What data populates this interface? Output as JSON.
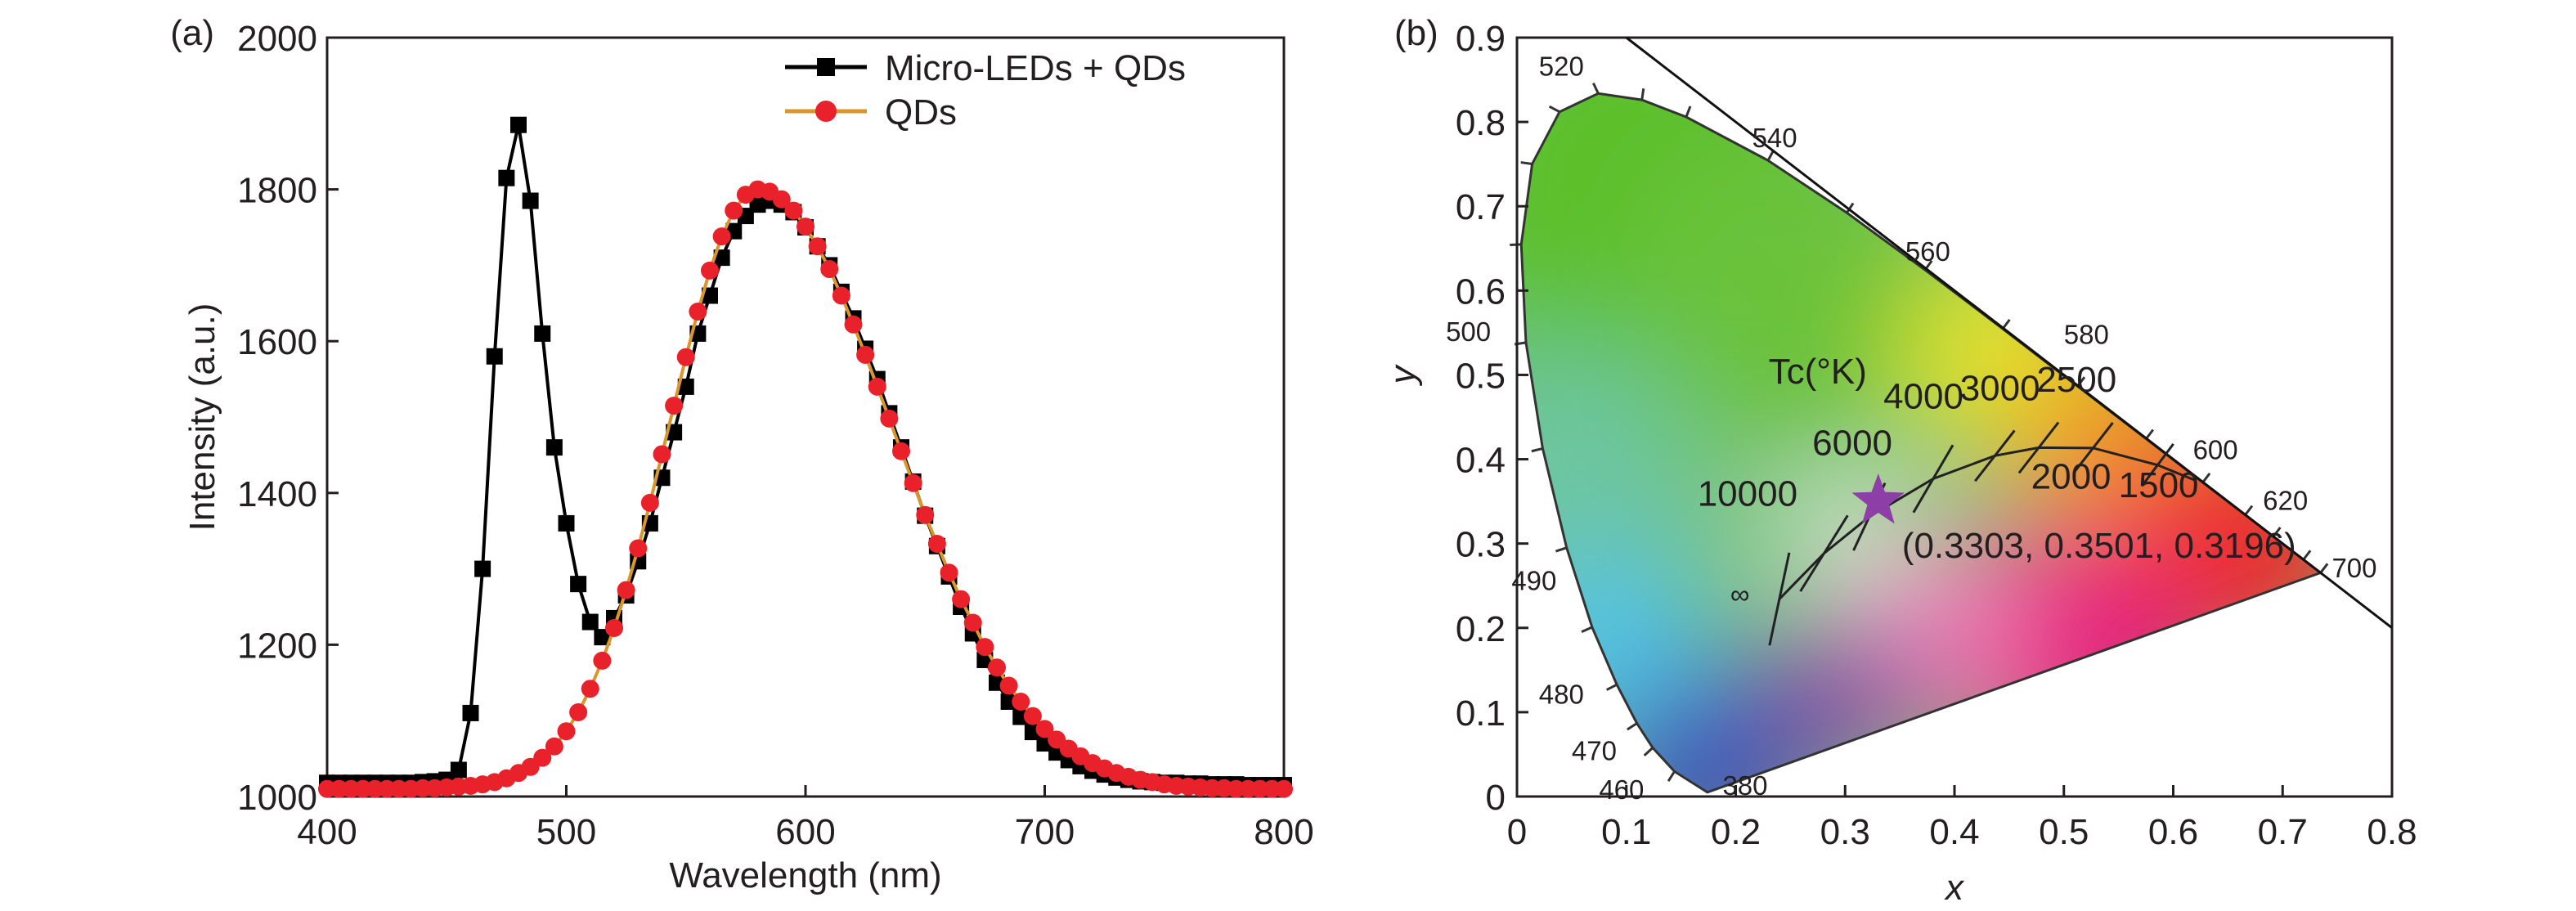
{
  "chart_data": [
    {
      "panel_label": "(a)",
      "type": "line",
      "xlabel": "Wavelength (nm)",
      "ylabel": "Intensity (a.u.)",
      "xlim": [
        400,
        800
      ],
      "ylim": [
        1000,
        2000
      ],
      "xticks": [
        400,
        500,
        600,
        700,
        800
      ],
      "yticks": [
        1000,
        1200,
        1400,
        1600,
        1800,
        2000
      ],
      "grid": false,
      "legend_position": "top-right",
      "x": [
        400,
        405,
        410,
        415,
        420,
        425,
        430,
        435,
        440,
        445,
        450,
        455,
        460,
        465,
        470,
        475,
        480,
        485,
        490,
        495,
        500,
        505,
        510,
        515,
        520,
        525,
        530,
        535,
        540,
        545,
        550,
        555,
        560,
        565,
        570,
        575,
        580,
        585,
        590,
        595,
        600,
        605,
        610,
        615,
        620,
        625,
        630,
        635,
        640,
        645,
        650,
        655,
        660,
        665,
        670,
        675,
        680,
        685,
        690,
        695,
        700,
        705,
        710,
        715,
        720,
        725,
        730,
        735,
        740,
        745,
        750,
        755,
        760,
        765,
        770,
        775,
        780,
        785,
        790,
        795,
        800
      ],
      "series": [
        {
          "name": "Micro-LEDs + QDs",
          "color": "#000000",
          "marker": "square",
          "values": [
            1018,
            1018,
            1018,
            1018,
            1018,
            1018,
            1018,
            1018,
            1019,
            1020,
            1022,
            1035,
            1110,
            1300,
            1580,
            1815,
            1885,
            1785,
            1610,
            1460,
            1360,
            1280,
            1230,
            1210,
            1235,
            1265,
            1310,
            1360,
            1420,
            1480,
            1540,
            1610,
            1660,
            1710,
            1745,
            1765,
            1780,
            1785,
            1780,
            1770,
            1750,
            1725,
            1700,
            1665,
            1630,
            1590,
            1550,
            1505,
            1460,
            1415,
            1370,
            1330,
            1290,
            1250,
            1215,
            1180,
            1150,
            1125,
            1105,
            1085,
            1070,
            1058,
            1048,
            1040,
            1034,
            1029,
            1025,
            1022,
            1020,
            1019,
            1018,
            1018,
            1017,
            1017,
            1016,
            1016,
            1016,
            1015,
            1015,
            1015,
            1015
          ]
        },
        {
          "name": "QDs",
          "color": "#e8212a",
          "line_color": "#d9962b",
          "marker": "circle",
          "values": [
            1010,
            1010,
            1010,
            1010,
            1010,
            1010,
            1010,
            1010,
            1011,
            1011,
            1012,
            1013,
            1014,
            1016,
            1019,
            1024,
            1031,
            1039,
            1051,
            1066,
            1086,
            1111,
            1142,
            1179,
            1222,
            1272,
            1327,
            1387,
            1451,
            1515,
            1579,
            1639,
            1693,
            1738,
            1772,
            1793,
            1800,
            1797,
            1787,
            1772,
            1751,
            1725,
            1695,
            1660,
            1622,
            1582,
            1540,
            1498,
            1455,
            1413,
            1371,
            1333,
            1295,
            1260,
            1229,
            1197,
            1170,
            1146,
            1125,
            1106,
            1089,
            1075,
            1063,
            1053,
            1044,
            1037,
            1031,
            1026,
            1022,
            1019,
            1016,
            1014,
            1013,
            1012,
            1011,
            1011,
            1010,
            1010,
            1010,
            1010,
            1010
          ]
        }
      ]
    },
    {
      "panel_label": "(b)",
      "type": "scatter",
      "subtype": "CIE 1931 chromaticity diagram",
      "xlabel": "x",
      "ylabel": "y",
      "xlim": [
        0,
        0.8
      ],
      "ylim": [
        0,
        0.9
      ],
      "xticks": [
        "0",
        "0.1",
        "0.2",
        "0.3",
        "0.4",
        "0.5",
        "0.6",
        "0.7",
        "0.8"
      ],
      "yticks": [
        "0",
        "0.1",
        "0.2",
        "0.3",
        "0.4",
        "0.5",
        "0.6",
        "0.7",
        "0.8",
        "0.9"
      ],
      "grid": false,
      "spectral_locus": [
        {
          "nm": 380,
          "x": 0.1741,
          "y": 0.005
        },
        {
          "nm": 460,
          "x": 0.144,
          "y": 0.0297
        },
        {
          "nm": 470,
          "x": 0.1241,
          "y": 0.0578
        },
        {
          "nm": 475,
          "x": 0.1096,
          "y": 0.0868
        },
        {
          "nm": 480,
          "x": 0.0913,
          "y": 0.1327
        },
        {
          "nm": 485,
          "x": 0.0687,
          "y": 0.2007
        },
        {
          "nm": 490,
          "x": 0.0454,
          "y": 0.295
        },
        {
          "nm": 495,
          "x": 0.0235,
          "y": 0.4127
        },
        {
          "nm": 500,
          "x": 0.0082,
          "y": 0.5384
        },
        {
          "nm": 505,
          "x": 0.0039,
          "y": 0.6548
        },
        {
          "nm": 510,
          "x": 0.0139,
          "y": 0.7502
        },
        {
          "nm": 515,
          "x": 0.0389,
          "y": 0.812
        },
        {
          "nm": 520,
          "x": 0.0743,
          "y": 0.8338
        },
        {
          "nm": 525,
          "x": 0.1142,
          "y": 0.8262
        },
        {
          "nm": 530,
          "x": 0.1547,
          "y": 0.8059
        },
        {
          "nm": 540,
          "x": 0.2296,
          "y": 0.7543
        },
        {
          "nm": 550,
          "x": 0.3016,
          "y": 0.6923
        },
        {
          "nm": 560,
          "x": 0.3731,
          "y": 0.6245
        },
        {
          "nm": 570,
          "x": 0.4441,
          "y": 0.5547
        },
        {
          "nm": 580,
          "x": 0.5125,
          "y": 0.4866
        },
        {
          "nm": 590,
          "x": 0.5752,
          "y": 0.4242
        },
        {
          "nm": 600,
          "x": 0.627,
          "y": 0.3725
        },
        {
          "nm": 610,
          "x": 0.6658,
          "y": 0.334
        },
        {
          "nm": 620,
          "x": 0.6915,
          "y": 0.3083
        },
        {
          "nm": 640,
          "x": 0.719,
          "y": 0.2809
        },
        {
          "nm": 700,
          "x": 0.7347,
          "y": 0.2653
        }
      ],
      "wavelength_labels": [
        "520",
        "540",
        "560",
        "580",
        "600",
        "620",
        "700",
        "500",
        "490",
        "480",
        "470",
        "460",
        "380"
      ],
      "planckian_locus_title": "Tc(°K)",
      "planckian_locus": [
        {
          "label": "∞",
          "x": 0.2399,
          "y": 0.2342
        },
        {
          "label": "10000",
          "x": 0.2807,
          "y": 0.2883
        },
        {
          "label": "6000",
          "x": 0.3221,
          "y": 0.3318
        },
        {
          "label": "4000",
          "x": 0.3805,
          "y": 0.3768
        },
        {
          "label": "3000",
          "x": 0.4369,
          "y": 0.4041
        },
        {
          "label": "2500",
          "x": 0.477,
          "y": 0.4137
        },
        {
          "label": "2000",
          "x": 0.5267,
          "y": 0.4133
        },
        {
          "label": "1500",
          "x": 0.5857,
          "y": 0.3931
        }
      ],
      "marked_point": {
        "x": 0.3303,
        "y": 0.3501,
        "label": "(0.3303, 0.3501, 0.3196)",
        "color": "#8e3fa7",
        "marker": "star"
      },
      "reference_line": {
        "from": [
          0.1,
          0.9
        ],
        "to": [
          0.8,
          0.2
        ]
      }
    }
  ]
}
